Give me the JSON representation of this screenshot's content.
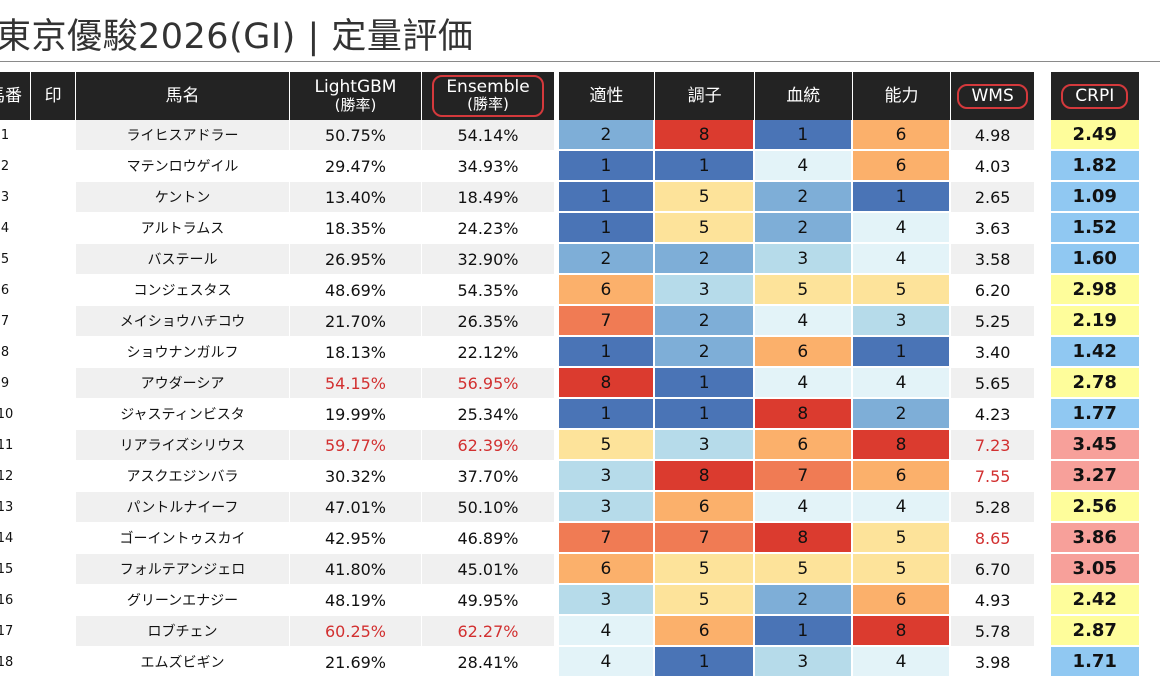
{
  "title": "東京優駿2026(GI) | 定量評価",
  "headers": {
    "num": "馬番",
    "mark": "印",
    "name": "馬名",
    "lgbm_line1": "LightGBM",
    "lgbm_line2": "(勝率)",
    "ens_line1": "Ensemble",
    "ens_line2": "(勝率)",
    "aptitude": "適性",
    "condition": "調子",
    "bloodline": "血統",
    "ability": "能力",
    "wms": "WMS",
    "crpi": "CRPI"
  },
  "highlight_color": "#d23030",
  "heat_colors": {
    "1": "#4a74b6",
    "2": "#7eaed7",
    "3": "#b6dbea",
    "4": "#e3f3f8",
    "5": "#fde39a",
    "6": "#fbb06b",
    "7": "#f07b54",
    "8": "#db3b2f"
  },
  "crpi_colors": {
    "blue": "#90c8f2",
    "yellow": "#fefd9b",
    "salmon": "#f7a09a"
  },
  "rows": [
    {
      "num": "1",
      "mark": "",
      "name": "ライヒスアドラー",
      "lgbm": "50.75%",
      "ens": "54.14%",
      "apt": "2",
      "cond": "8",
      "blood": "1",
      "abil": "6",
      "wms": "4.98",
      "crpi": "2.49",
      "crpi_color": "yellow",
      "lgbm_red": false,
      "ens_red": false,
      "wms_red": false
    },
    {
      "num": "2",
      "mark": "",
      "name": "マテンロウゲイル",
      "lgbm": "29.47%",
      "ens": "34.93%",
      "apt": "1",
      "cond": "1",
      "blood": "4",
      "abil": "6",
      "wms": "4.03",
      "crpi": "1.82",
      "crpi_color": "blue",
      "lgbm_red": false,
      "ens_red": false,
      "wms_red": false
    },
    {
      "num": "3",
      "mark": "",
      "name": "ケントン",
      "lgbm": "13.40%",
      "ens": "18.49%",
      "apt": "1",
      "cond": "5",
      "blood": "2",
      "abil": "1",
      "wms": "2.65",
      "crpi": "1.09",
      "crpi_color": "blue",
      "lgbm_red": false,
      "ens_red": false,
      "wms_red": false
    },
    {
      "num": "4",
      "mark": "",
      "name": "アルトラムス",
      "lgbm": "18.35%",
      "ens": "24.23%",
      "apt": "1",
      "cond": "5",
      "blood": "2",
      "abil": "4",
      "wms": "3.63",
      "crpi": "1.52",
      "crpi_color": "blue",
      "lgbm_red": false,
      "ens_red": false,
      "wms_red": false
    },
    {
      "num": "5",
      "mark": "",
      "name": "バステール",
      "lgbm": "26.95%",
      "ens": "32.90%",
      "apt": "2",
      "cond": "2",
      "blood": "3",
      "abil": "4",
      "wms": "3.58",
      "crpi": "1.60",
      "crpi_color": "blue",
      "lgbm_red": false,
      "ens_red": false,
      "wms_red": false
    },
    {
      "num": "6",
      "mark": "",
      "name": "コンジェスタス",
      "lgbm": "48.69%",
      "ens": "54.35%",
      "apt": "6",
      "cond": "3",
      "blood": "5",
      "abil": "5",
      "wms": "6.20",
      "crpi": "2.98",
      "crpi_color": "yellow",
      "lgbm_red": false,
      "ens_red": false,
      "wms_red": false
    },
    {
      "num": "7",
      "mark": "",
      "name": "メイショウハチコウ",
      "lgbm": "21.70%",
      "ens": "26.35%",
      "apt": "7",
      "cond": "2",
      "blood": "4",
      "abil": "3",
      "wms": "5.25",
      "crpi": "2.19",
      "crpi_color": "yellow",
      "lgbm_red": false,
      "ens_red": false,
      "wms_red": false
    },
    {
      "num": "8",
      "mark": "",
      "name": "ショウナンガルフ",
      "lgbm": "18.13%",
      "ens": "22.12%",
      "apt": "1",
      "cond": "2",
      "blood": "6",
      "abil": "1",
      "wms": "3.40",
      "crpi": "1.42",
      "crpi_color": "blue",
      "lgbm_red": false,
      "ens_red": false,
      "wms_red": false
    },
    {
      "num": "9",
      "mark": "",
      "name": "アウダーシア",
      "lgbm": "54.15%",
      "ens": "56.95%",
      "apt": "8",
      "cond": "1",
      "blood": "4",
      "abil": "4",
      "wms": "5.65",
      "crpi": "2.78",
      "crpi_color": "yellow",
      "lgbm_red": true,
      "ens_red": true,
      "wms_red": false
    },
    {
      "num": "10",
      "mark": "",
      "name": "ジャスティンビスタ",
      "lgbm": "19.99%",
      "ens": "25.34%",
      "apt": "1",
      "cond": "1",
      "blood": "8",
      "abil": "2",
      "wms": "4.23",
      "crpi": "1.77",
      "crpi_color": "blue",
      "lgbm_red": false,
      "ens_red": false,
      "wms_red": false
    },
    {
      "num": "11",
      "mark": "",
      "name": "リアライズシリウス",
      "lgbm": "59.77%",
      "ens": "62.39%",
      "apt": "5",
      "cond": "3",
      "blood": "6",
      "abil": "8",
      "wms": "7.23",
      "crpi": "3.45",
      "crpi_color": "salmon",
      "lgbm_red": true,
      "ens_red": true,
      "wms_red": true
    },
    {
      "num": "12",
      "mark": "",
      "name": "アスクエジンバラ",
      "lgbm": "30.32%",
      "ens": "37.70%",
      "apt": "3",
      "cond": "8",
      "blood": "7",
      "abil": "6",
      "wms": "7.55",
      "crpi": "3.27",
      "crpi_color": "salmon",
      "lgbm_red": false,
      "ens_red": false,
      "wms_red": true
    },
    {
      "num": "13",
      "mark": "",
      "name": "パントルナイーフ",
      "lgbm": "47.01%",
      "ens": "50.10%",
      "apt": "3",
      "cond": "6",
      "blood": "4",
      "abil": "4",
      "wms": "5.28",
      "crpi": "2.56",
      "crpi_color": "yellow",
      "lgbm_red": false,
      "ens_red": false,
      "wms_red": false
    },
    {
      "num": "14",
      "mark": "",
      "name": "ゴーイントゥスカイ",
      "lgbm": "42.95%",
      "ens": "46.89%",
      "apt": "7",
      "cond": "7",
      "blood": "8",
      "abil": "5",
      "wms": "8.65",
      "crpi": "3.86",
      "crpi_color": "salmon",
      "lgbm_red": false,
      "ens_red": false,
      "wms_red": true
    },
    {
      "num": "15",
      "mark": "",
      "name": "フォルテアンジェロ",
      "lgbm": "41.80%",
      "ens": "45.01%",
      "apt": "6",
      "cond": "5",
      "blood": "5",
      "abil": "5",
      "wms": "6.70",
      "crpi": "3.05",
      "crpi_color": "salmon",
      "lgbm_red": false,
      "ens_red": false,
      "wms_red": false
    },
    {
      "num": "16",
      "mark": "",
      "name": "グリーンエナジー",
      "lgbm": "48.19%",
      "ens": "49.95%",
      "apt": "3",
      "cond": "5",
      "blood": "2",
      "abil": "6",
      "wms": "4.93",
      "crpi": "2.42",
      "crpi_color": "yellow",
      "lgbm_red": false,
      "ens_red": false,
      "wms_red": false
    },
    {
      "num": "17",
      "mark": "",
      "name": "ロブチェン",
      "lgbm": "60.25%",
      "ens": "62.27%",
      "apt": "4",
      "cond": "6",
      "blood": "1",
      "abil": "8",
      "wms": "5.78",
      "crpi": "2.87",
      "crpi_color": "yellow",
      "lgbm_red": true,
      "ens_red": true,
      "wms_red": false
    },
    {
      "num": "18",
      "mark": "",
      "name": "エムズビギン",
      "lgbm": "21.69%",
      "ens": "28.41%",
      "apt": "4",
      "cond": "1",
      "blood": "3",
      "abil": "4",
      "wms": "3.98",
      "crpi": "1.71",
      "crpi_color": "blue",
      "lgbm_red": false,
      "ens_red": false,
      "wms_red": false
    }
  ]
}
